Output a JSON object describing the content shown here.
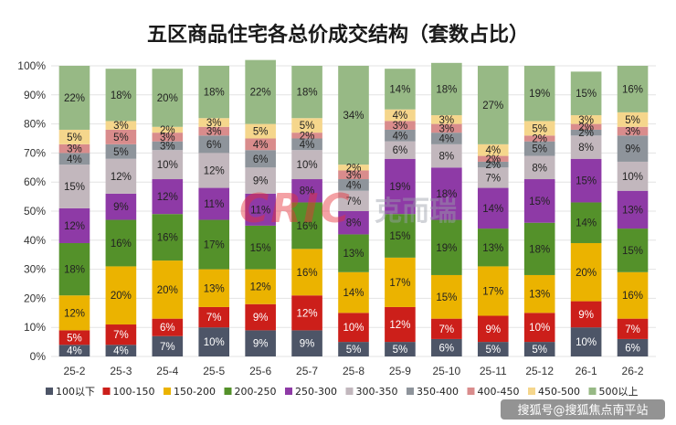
{
  "chart_data": {
    "type": "bar",
    "stacked": true,
    "title": "五区商品住宅各总价成交结构（套数占比）",
    "ylim": [
      0,
      100
    ],
    "yticks": [
      "0%",
      "10%",
      "20%",
      "30%",
      "40%",
      "50%",
      "60%",
      "70%",
      "80%",
      "90%",
      "100%"
    ],
    "categories": [
      "25-2",
      "25-3",
      "25-4",
      "25-5",
      "25-6",
      "25-7",
      "25-8",
      "25-9",
      "25-10",
      "25-11",
      "25-12",
      "26-1",
      "26-2"
    ],
    "series": [
      {
        "name": "100以下",
        "color": "#4d5567",
        "text_color": "#ffffff",
        "values": [
          4,
          4,
          7,
          10,
          9,
          9,
          5,
          5,
          6,
          5,
          5,
          10,
          6
        ]
      },
      {
        "name": "100-150",
        "color": "#cc1f1a",
        "text_color": "#ffffff",
        "values": [
          5,
          7,
          6,
          7,
          9,
          12,
          10,
          12,
          7,
          9,
          10,
          9,
          7
        ]
      },
      {
        "name": "150-200",
        "color": "#ebb300",
        "text_color": "#222222",
        "values": [
          12,
          20,
          20,
          13,
          12,
          16,
          14,
          17,
          15,
          17,
          13,
          20,
          16
        ]
      },
      {
        "name": "200-250",
        "color": "#54912a",
        "text_color": "#222222",
        "values": [
          18,
          16,
          16,
          17,
          15,
          16,
          13,
          15,
          19,
          13,
          18,
          14,
          15
        ]
      },
      {
        "name": "250-300",
        "color": "#8e3aa6",
        "text_color": "#222222",
        "values": [
          12,
          9,
          12,
          11,
          11,
          8,
          8,
          19,
          18,
          14,
          15,
          15,
          13
        ]
      },
      {
        "name": "300-350",
        "color": "#c2b7bd",
        "text_color": "#222222",
        "values": [
          15,
          12,
          10,
          12,
          9,
          10,
          7,
          6,
          8,
          7,
          8,
          8,
          10
        ]
      },
      {
        "name": "350-400",
        "color": "#8e949b",
        "text_color": "#222222",
        "values": [
          4,
          5,
          3,
          6,
          6,
          4,
          4,
          4,
          4,
          2,
          5,
          2,
          9
        ]
      },
      {
        "name": "400-450",
        "color": "#d98c8c",
        "text_color": "#222222",
        "values": [
          3,
          5,
          3,
          3,
          4,
          2,
          3,
          3,
          3,
          2,
          2,
          2,
          3
        ]
      },
      {
        "name": "450-500",
        "color": "#f5d68c",
        "text_color": "#222222",
        "values": [
          5,
          3,
          2,
          3,
          5,
          5,
          2,
          4,
          3,
          4,
          5,
          3,
          5
        ]
      },
      {
        "name": "500以上",
        "color": "#97b985",
        "text_color": "#222222",
        "values": [
          22,
          18,
          20,
          18,
          22,
          18,
          34,
          14,
          18,
          27,
          19,
          15,
          16
        ]
      }
    ]
  },
  "watermark": {
    "logo_text": "CRIC",
    "text": "克而瑞"
  },
  "credit": "搜狐号@搜狐焦点南平站"
}
